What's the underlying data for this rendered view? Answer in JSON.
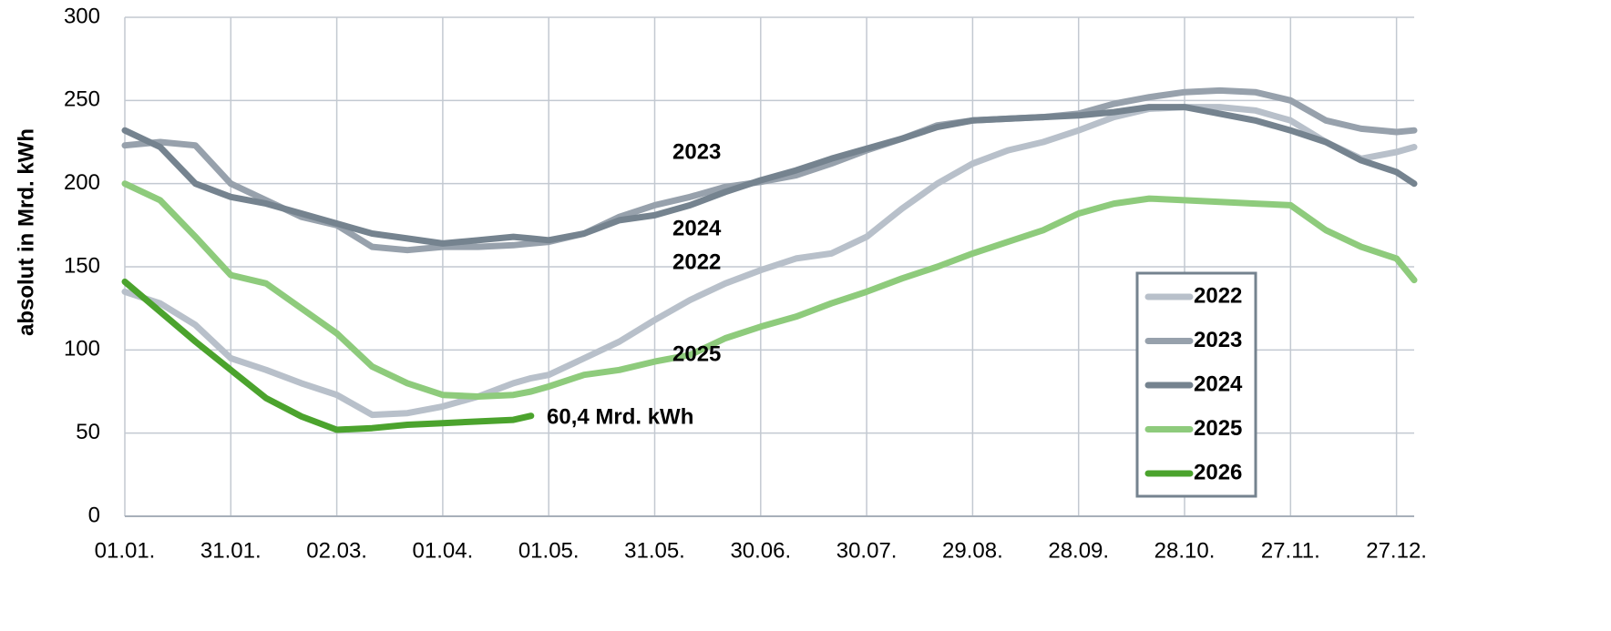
{
  "chart_data": {
    "type": "line",
    "y_label": "absolut in Mrd. kWh",
    "x": [
      0,
      10,
      20,
      30,
      40,
      50,
      60,
      70,
      80,
      90,
      100,
      110,
      115,
      120,
      130,
      140,
      150,
      160,
      170,
      180,
      190,
      200,
      210,
      220,
      230,
      240,
      250,
      260,
      270,
      280,
      290,
      300,
      310,
      320,
      330,
      340,
      350,
      360,
      365
    ],
    "xlim": [
      0,
      365
    ],
    "xticks": [
      {
        "value": 0,
        "label": "01.01."
      },
      {
        "value": 30,
        "label": "31.01."
      },
      {
        "value": 60,
        "label": "02.03."
      },
      {
        "value": 90,
        "label": "01.04."
      },
      {
        "value": 120,
        "label": "01.05."
      },
      {
        "value": 150,
        "label": "31.05."
      },
      {
        "value": 180,
        "label": "30.06."
      },
      {
        "value": 210,
        "label": "30.07."
      },
      {
        "value": 240,
        "label": "29.08."
      },
      {
        "value": 270,
        "label": "28.09."
      },
      {
        "value": 300,
        "label": "28.10."
      },
      {
        "value": 330,
        "label": "27.11."
      },
      {
        "value": 360,
        "label": "27.12."
      }
    ],
    "ylim": [
      0,
      300
    ],
    "yticks": [
      0,
      50,
      100,
      150,
      200,
      250,
      300
    ],
    "grid": true,
    "legend": "lower right",
    "series": [
      {
        "name": "2022",
        "color": "#b8c0ca",
        "values": [
          135,
          128,
          115,
          95,
          88,
          80,
          73,
          61,
          62,
          66,
          72,
          80,
          83,
          85,
          95,
          105,
          118,
          130,
          140,
          148,
          155,
          158,
          168,
          185,
          200,
          212,
          220,
          225,
          232,
          240,
          245,
          246,
          246,
          244,
          238,
          225,
          215,
          219,
          222
        ]
      },
      {
        "name": "2023",
        "color": "#97a1ac",
        "values": [
          223,
          225,
          223,
          200,
          190,
          180,
          175,
          162,
          160,
          162,
          162,
          163,
          164,
          165,
          170,
          180,
          187,
          192,
          198,
          201,
          205,
          212,
          220,
          227,
          235,
          238,
          239,
          240,
          242,
          248,
          252,
          255,
          256,
          255,
          250,
          238,
          233,
          231,
          232
        ]
      },
      {
        "name": "2024",
        "color": "#75838f",
        "values": [
          232,
          222,
          200,
          192,
          188,
          182,
          176,
          170,
          167,
          164,
          166,
          168,
          167,
          166,
          170,
          178,
          181,
          187,
          195,
          202,
          208,
          215,
          221,
          227,
          234,
          238,
          239,
          240,
          241,
          243,
          246,
          246,
          242,
          238,
          232,
          225,
          214,
          207,
          200
        ]
      },
      {
        "name": "2025",
        "color": "#8ecb7c",
        "values": [
          200,
          190,
          168,
          145,
          140,
          125,
          110,
          90,
          80,
          73,
          72,
          73,
          75,
          78,
          85,
          88,
          93,
          97,
          107,
          114,
          120,
          128,
          135,
          143,
          150,
          158,
          165,
          172,
          182,
          188,
          191,
          190,
          189,
          188,
          187,
          172,
          162,
          155,
          142
        ]
      },
      {
        "name": "2026",
        "color": "#4ba32d",
        "values": [
          141,
          123,
          105,
          88,
          71,
          60,
          52,
          53,
          55,
          56,
          57,
          58,
          60.4,
          null,
          null,
          null,
          null,
          null,
          null,
          null,
          null,
          null,
          null,
          null,
          null,
          null,
          null,
          null,
          null,
          null,
          null,
          null,
          null,
          null,
          null,
          null,
          null,
          null,
          null
        ]
      }
    ],
    "annotations": [
      {
        "text": "2023",
        "color": "#97a1ac"
      },
      {
        "text": "2024",
        "color": "#75838f"
      },
      {
        "text": "2022",
        "color": "#b8c0ca"
      },
      {
        "text": "2025",
        "color": "#8ecb7c"
      },
      {
        "text": "60,4 Mrd. kWh",
        "color": "#666666"
      }
    ]
  }
}
